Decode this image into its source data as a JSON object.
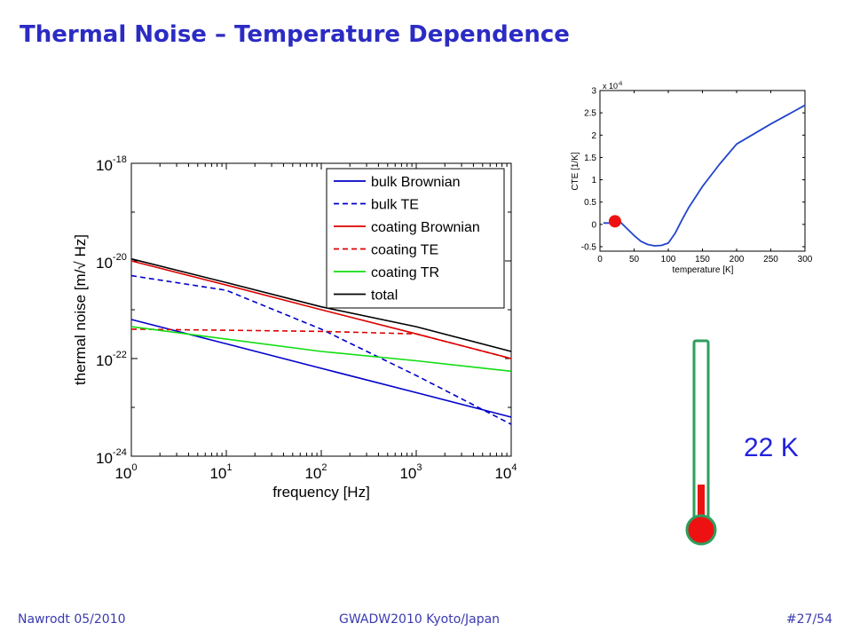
{
  "slide": {
    "title": "Thermal Noise – Temperature Dependence",
    "footer_left": "Nawrodt 05/2010",
    "footer_center": "GWADW2010 Kyoto/Japan",
    "footer_right": "#27/54"
  },
  "thermometer": {
    "label": "22 K",
    "mercury_color": "#ee1111",
    "tube_color": "#2e9e5e"
  },
  "chart_data": [
    {
      "type": "line",
      "xlabel": "frequency [Hz]",
      "ylabel": "thermal noise [m/√ Hz]",
      "x_scale": "log",
      "y_scale": "log",
      "xlim": [
        1,
        10000
      ],
      "ylim": [
        1e-24,
        1e-18
      ],
      "x_ticks": [
        {
          "value": 1,
          "base": "10",
          "exp": "0"
        },
        {
          "value": 10,
          "base": "10",
          "exp": "1"
        },
        {
          "value": 100,
          "base": "10",
          "exp": "2"
        },
        {
          "value": 1000,
          "base": "10",
          "exp": "3"
        },
        {
          "value": 10000,
          "base": "10",
          "exp": "4"
        }
      ],
      "y_ticks": [
        {
          "value": 1e-18,
          "base": "10",
          "exp": "-18"
        },
        {
          "value": 1e-20,
          "base": "10",
          "exp": "-20"
        },
        {
          "value": 1e-22,
          "base": "10",
          "exp": "-22"
        },
        {
          "value": 1e-24,
          "base": "10",
          "exp": "-24"
        }
      ],
      "legend_position": "top-right",
      "grid": false,
      "series": [
        {
          "name": "bulk Brownian",
          "color": "#0000cc",
          "dash": "solid",
          "x": [
            1,
            10,
            100,
            1000,
            10000
          ],
          "y": [
            6.3e-22,
            2e-22,
            6.3e-23,
            2e-23,
            6.3e-24
          ]
        },
        {
          "name": "bulk TE",
          "color": "#0000cc",
          "dash": "dashed",
          "x": [
            1,
            10,
            100,
            1000,
            10000
          ],
          "y": [
            5e-21,
            2.5e-21,
            4e-22,
            4.5e-23,
            4.5e-24
          ]
        },
        {
          "name": "coating Brownian",
          "color": "#dd0000",
          "dash": "solid",
          "x": [
            1,
            10,
            100,
            1000,
            10000
          ],
          "y": [
            1e-20,
            3.2e-21,
            1e-21,
            3.2e-22,
            1e-22
          ]
        },
        {
          "name": "coating TE",
          "color": "#dd0000",
          "dash": "dashed",
          "x": [
            1,
            10,
            100,
            1000,
            10000
          ],
          "y": [
            4e-22,
            3.8e-22,
            3.6e-22,
            3.2e-22,
            1e-22
          ]
        },
        {
          "name": "coating TR",
          "color": "#11dd11",
          "dash": "solid",
          "x": [
            1,
            10,
            100,
            1000,
            10000
          ],
          "y": [
            4.5e-22,
            2.5e-22,
            1.4e-22,
            9e-23,
            5.5e-23
          ]
        },
        {
          "name": "total",
          "color": "#000000",
          "dash": "solid",
          "x": [
            1,
            10,
            100,
            1000,
            10000
          ],
          "y": [
            1.1e-20,
            3.6e-21,
            1.15e-21,
            4.5e-22,
            1.4e-22
          ]
        }
      ]
    },
    {
      "type": "line",
      "xlabel": "temperature [K]",
      "ylabel": "CTE [1/K]",
      "scale_note_base": "x 10",
      "scale_note_exp": "-6",
      "xlim": [
        0,
        300
      ],
      "ylim": [
        -0.6,
        3
      ],
      "x_ticks": [
        "0",
        "50",
        "100",
        "150",
        "200",
        "250",
        "300"
      ],
      "x_tick_values": [
        0,
        50,
        100,
        150,
        200,
        250,
        300
      ],
      "y_ticks": [
        "-0.5",
        "0",
        "0.5",
        "1",
        "1.5",
        "2",
        "2.5",
        "3"
      ],
      "y_tick_values": [
        -0.5,
        0,
        0.5,
        1,
        1.5,
        2,
        2.5,
        3
      ],
      "grid": false,
      "series": [
        {
          "color": "#2244cc",
          "x": [
            5,
            10,
            20,
            30,
            40,
            50,
            60,
            70,
            80,
            90,
            100,
            110,
            120,
            130,
            150,
            175,
            200,
            250,
            300
          ],
          "y": [
            0.03,
            0.03,
            0.03,
            0.05,
            -0.1,
            -0.25,
            -0.38,
            -0.45,
            -0.48,
            -0.47,
            -0.42,
            -0.2,
            0.1,
            0.38,
            0.85,
            1.35,
            1.8,
            2.25,
            2.67
          ]
        }
      ],
      "highlight_point": {
        "x": 22,
        "y": 0.07,
        "color": "#ee1111"
      }
    }
  ]
}
